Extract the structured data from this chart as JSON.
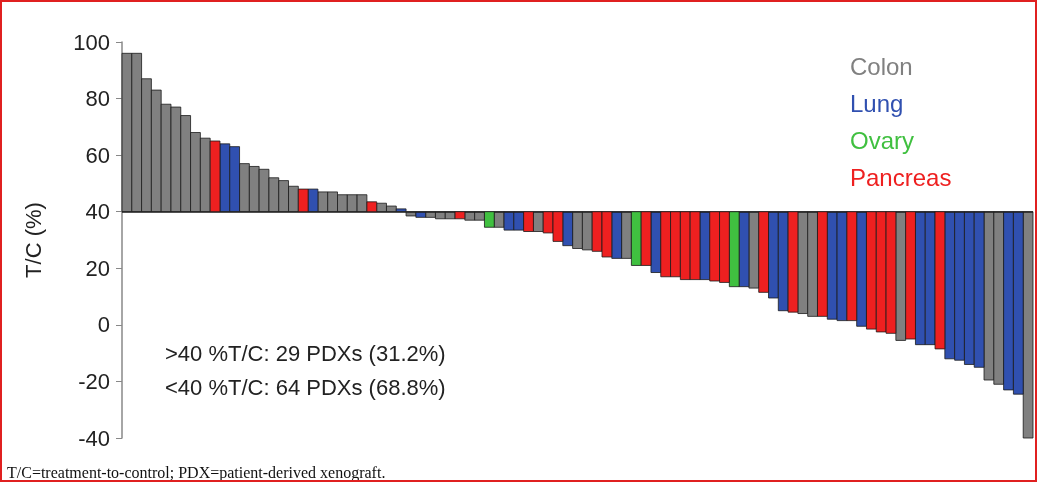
{
  "chart_data": {
    "type": "bar",
    "ylabel": "T/C (%)",
    "ylim": [
      -40,
      100
    ],
    "yticks": [
      -40,
      -20,
      0,
      20,
      40,
      60,
      80,
      100
    ],
    "ref_lines": [
      {
        "axis": "y",
        "value": 40,
        "color": "#222222"
      }
    ],
    "categories": [
      null,
      null,
      null,
      null,
      null,
      null,
      null,
      null,
      null,
      null,
      null,
      null,
      null,
      null,
      null,
      null,
      null,
      null,
      null,
      null,
      null,
      null,
      null,
      null,
      null,
      null,
      null,
      null,
      null,
      null,
      null,
      null,
      null,
      null,
      null,
      null,
      null,
      null,
      null,
      null,
      null,
      null,
      null,
      null,
      null,
      null,
      null,
      null,
      null,
      null,
      null,
      null,
      null,
      null,
      null,
      null,
      null,
      null,
      null,
      null,
      null,
      null,
      null,
      null,
      null,
      null,
      null,
      null,
      null,
      null,
      null,
      null,
      null,
      null,
      null,
      null,
      null,
      null,
      null,
      null,
      null,
      null,
      null,
      null,
      null,
      null,
      null,
      null,
      null,
      null,
      null,
      null,
      null
    ],
    "series": [
      {
        "name": "Colon",
        "color": "#808080",
        "base": [
          40,
          40,
          40,
          40,
          40,
          40,
          40,
          40,
          40,
          null,
          null,
          null,
          40,
          40,
          40,
          40,
          40,
          40,
          null,
          null,
          40,
          40,
          40,
          40,
          40,
          null,
          40,
          40,
          null,
          40,
          null,
          40,
          40,
          40,
          null,
          40,
          40,
          null,
          40,
          null,
          null,
          null,
          40,
          null,
          null,
          null,
          40,
          40,
          null,
          null,
          null,
          40,
          null,
          null,
          null,
          null,
          null,
          null,
          null,
          null,
          null,
          null,
          null,
          null,
          40,
          null,
          null,
          null,
          null,
          40,
          40,
          null,
          null,
          null,
          null,
          null,
          null,
          null,
          null,
          40,
          null,
          null,
          null,
          null,
          null,
          null,
          null,
          null,
          40,
          40,
          null,
          null,
          40
        ],
        "values": [
          56,
          56,
          47,
          43,
          38,
          37,
          34,
          28,
          26,
          null,
          null,
          null,
          17,
          16,
          15,
          12,
          11,
          9,
          null,
          null,
          7,
          7,
          6,
          6,
          6,
          null,
          3,
          2,
          null,
          -1.5,
          null,
          -2,
          -2.5,
          -2.5,
          null,
          -3,
          -3,
          null,
          -5.5,
          null,
          null,
          null,
          -7,
          null,
          null,
          null,
          -13,
          -13.5,
          null,
          null,
          null,
          -16.5,
          null,
          null,
          null,
          null,
          null,
          null,
          null,
          null,
          null,
          null,
          null,
          null,
          -27,
          null,
          null,
          null,
          null,
          -36,
          -37,
          null,
          null,
          null,
          null,
          null,
          null,
          null,
          null,
          -45.5,
          null,
          null,
          null,
          null,
          null,
          null,
          null,
          null,
          -59.5,
          -61,
          null,
          null,
          -80
        ]
      },
      {
        "name": "Lung",
        "color": "#3050b0",
        "base": [
          null,
          null,
          null,
          null,
          null,
          null,
          null,
          null,
          null,
          null,
          40,
          40,
          null,
          null,
          null,
          null,
          null,
          null,
          null,
          40,
          null,
          null,
          null,
          null,
          null,
          null,
          null,
          null,
          40,
          null,
          40,
          null,
          null,
          null,
          null,
          null,
          null,
          null,
          null,
          40,
          40,
          null,
          null,
          null,
          null,
          40,
          null,
          null,
          null,
          null,
          40,
          null,
          null,
          null,
          40,
          null,
          null,
          null,
          null,
          40,
          null,
          null,
          null,
          40,
          null,
          null,
          40,
          40,
          null,
          null,
          null,
          null,
          40,
          40,
          null,
          40,
          null,
          null,
          null,
          null,
          null,
          40,
          40,
          null,
          40,
          40,
          40,
          40,
          null,
          null,
          40,
          40,
          null
        ],
        "values": [
          null,
          null,
          null,
          null,
          null,
          null,
          null,
          null,
          null,
          null,
          24,
          23,
          null,
          null,
          null,
          null,
          null,
          null,
          null,
          8,
          null,
          null,
          null,
          null,
          null,
          null,
          null,
          null,
          1,
          null,
          -2,
          null,
          null,
          null,
          null,
          null,
          null,
          null,
          null,
          -6.5,
          -6.5,
          null,
          null,
          null,
          null,
          -12,
          null,
          null,
          null,
          null,
          -16.5,
          null,
          null,
          null,
          -21.5,
          null,
          null,
          null,
          null,
          -24,
          null,
          null,
          null,
          -26.5,
          null,
          null,
          -30.5,
          -35,
          null,
          null,
          null,
          null,
          -38,
          -38.5,
          null,
          -40.5,
          null,
          null,
          null,
          null,
          null,
          -47,
          -47,
          null,
          -52,
          -52.5,
          -54,
          -55,
          null,
          null,
          -63,
          -64.5,
          null
        ]
      },
      {
        "name": "Ovary",
        "color": "#40c040",
        "base": [
          null,
          null,
          null,
          null,
          null,
          null,
          null,
          null,
          null,
          null,
          null,
          null,
          null,
          null,
          null,
          null,
          null,
          null,
          null,
          null,
          null,
          null,
          null,
          null,
          null,
          null,
          null,
          null,
          null,
          null,
          null,
          null,
          null,
          null,
          null,
          null,
          null,
          40,
          null,
          null,
          null,
          null,
          null,
          null,
          null,
          null,
          null,
          null,
          null,
          null,
          null,
          null,
          40,
          null,
          null,
          null,
          null,
          null,
          null,
          null,
          null,
          null,
          40,
          null,
          null,
          null,
          null,
          null,
          null,
          null,
          null,
          null,
          null,
          null,
          null,
          null,
          null,
          null,
          null,
          null,
          null,
          null,
          null,
          null,
          null,
          null,
          null,
          null,
          null,
          null,
          null,
          null,
          null
        ],
        "values": [
          null,
          null,
          null,
          null,
          null,
          null,
          null,
          null,
          null,
          null,
          null,
          null,
          null,
          null,
          null,
          null,
          null,
          null,
          null,
          null,
          null,
          null,
          null,
          null,
          null,
          null,
          null,
          null,
          null,
          null,
          null,
          null,
          null,
          null,
          null,
          null,
          null,
          -5.5,
          null,
          null,
          null,
          null,
          null,
          null,
          null,
          null,
          null,
          null,
          null,
          null,
          null,
          null,
          -19,
          null,
          null,
          null,
          null,
          null,
          null,
          null,
          null,
          null,
          -26.5,
          null,
          null,
          null,
          null,
          null,
          null,
          null,
          null,
          null,
          null,
          null,
          null,
          null,
          null,
          null,
          null,
          null,
          null,
          null,
          null,
          null,
          null,
          null,
          null,
          null,
          null,
          null,
          null,
          null,
          null
        ]
      },
      {
        "name": "Pancreas",
        "color": "#ee2020",
        "base": [
          null,
          null,
          null,
          null,
          null,
          null,
          null,
          null,
          null,
          40,
          null,
          null,
          null,
          null,
          null,
          null,
          null,
          null,
          40,
          null,
          null,
          null,
          null,
          null,
          null,
          40,
          null,
          null,
          null,
          null,
          null,
          null,
          null,
          null,
          40,
          null,
          null,
          null,
          null,
          null,
          null,
          40,
          null,
          40,
          40,
          null,
          null,
          null,
          40,
          40,
          null,
          null,
          null,
          40,
          null,
          40,
          40,
          40,
          40,
          null,
          40,
          40,
          null,
          null,
          null,
          40,
          null,
          null,
          40,
          null,
          null,
          40,
          null,
          null,
          40,
          null,
          40,
          40,
          40,
          null,
          40,
          null,
          null,
          40,
          null,
          null,
          null,
          null,
          null,
          null,
          null,
          null,
          null
        ],
        "values": [
          null,
          null,
          null,
          null,
          null,
          null,
          null,
          null,
          null,
          25,
          null,
          null,
          null,
          null,
          null,
          null,
          null,
          null,
          8,
          null,
          null,
          null,
          null,
          null,
          null,
          3.5,
          null,
          null,
          null,
          null,
          null,
          null,
          null,
          null,
          -2.5,
          null,
          null,
          null,
          null,
          null,
          null,
          -7,
          null,
          -7.5,
          -10.5,
          null,
          null,
          null,
          -14,
          -16,
          null,
          null,
          null,
          -19,
          null,
          -23,
          -23,
          -24,
          -24,
          null,
          -24.5,
          -25,
          null,
          null,
          null,
          -28.5,
          null,
          null,
          -35.5,
          null,
          null,
          -37,
          null,
          null,
          -38.5,
          null,
          -41.5,
          -42.5,
          -43,
          null,
          -45,
          null,
          null,
          -48.5,
          null,
          null,
          null,
          null,
          null,
          null,
          null,
          null,
          null
        ]
      }
    ],
    "annotations": [
      ">40 %T/C: 29 PDXs (31.2%)",
      "<40 %T/C: 64 PDXs (68.8%)",
      "T/C=treatment-to-control; PDX=patient-derived xenograft."
    ]
  }
}
